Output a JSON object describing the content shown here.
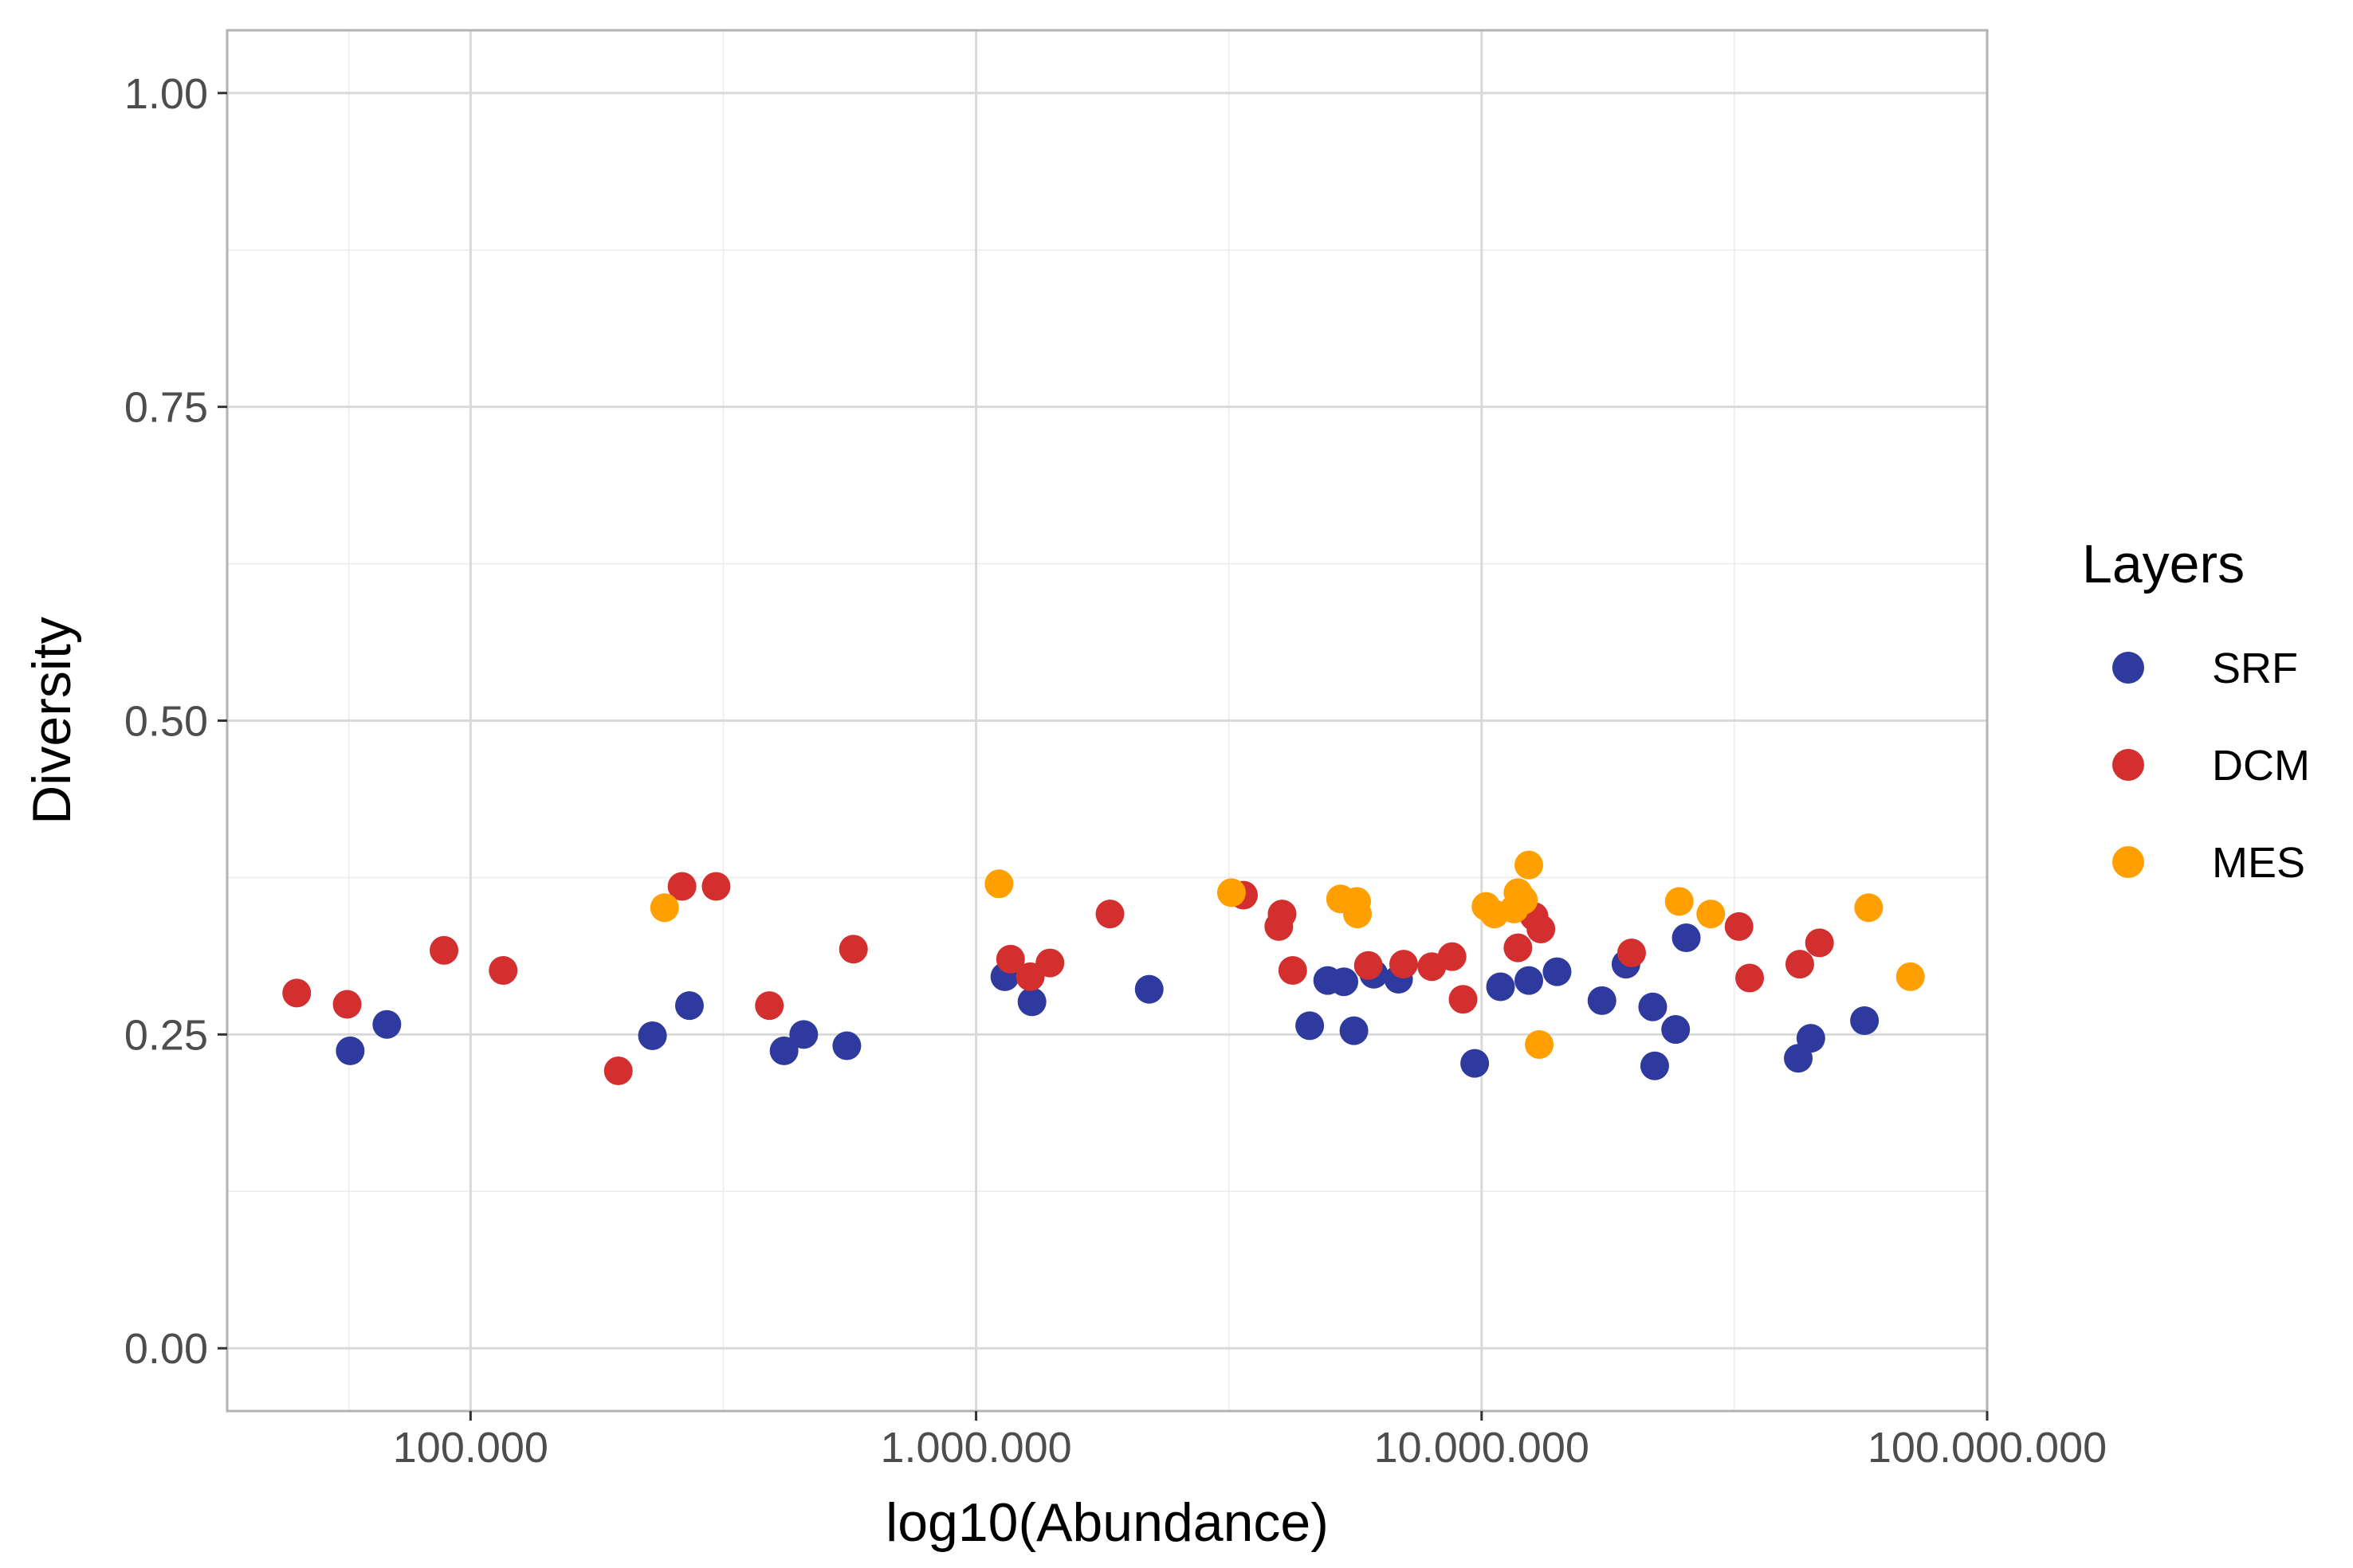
{
  "chart_data": {
    "type": "scatter",
    "title": "",
    "xlabel": "log10(Abundance)",
    "ylabel": "Diversity",
    "x_scale": "log10",
    "xlim": [
      33000,
      100000000
    ],
    "ylim": [
      -0.05,
      1.05
    ],
    "x_ticks": [
      100000,
      1000000,
      10000000,
      100000000
    ],
    "x_tick_labels": [
      "100.000",
      "1.000.000",
      "10.000.000",
      "100.000.000"
    ],
    "y_ticks": [
      0,
      0.25,
      0.5,
      0.75,
      1
    ],
    "y_tick_labels": [
      "0.00",
      "0.25",
      "0.50",
      "0.75",
      "1.00"
    ],
    "grid": true,
    "legend": {
      "title": "Layers",
      "position": "right"
    },
    "series": [
      {
        "name": "SRF",
        "color": "#2e3a9e",
        "points": [
          [
            57800,
            0.237
          ],
          [
            68300,
            0.258
          ],
          [
            229000,
            0.249
          ],
          [
            271000,
            0.273
          ],
          [
            417000,
            0.237
          ],
          [
            456000,
            0.25
          ],
          [
            555000,
            0.241
          ],
          [
            1140000,
            0.296
          ],
          [
            1290000,
            0.276
          ],
          [
            2200000,
            0.286
          ],
          [
            4570000,
            0.257
          ],
          [
            4960000,
            0.293
          ],
          [
            5340000,
            0.292
          ],
          [
            5590000,
            0.253
          ],
          [
            6120000,
            0.298
          ],
          [
            6850000,
            0.294
          ],
          [
            9690000,
            0.227
          ],
          [
            10900000,
            0.288
          ],
          [
            12400000,
            0.293
          ],
          [
            14100000,
            0.3
          ],
          [
            17300000,
            0.277
          ],
          [
            19300000,
            0.306
          ],
          [
            21800000,
            0.272
          ],
          [
            22000000,
            0.225
          ],
          [
            24200000,
            0.254
          ],
          [
            25400000,
            0.327
          ],
          [
            42300000,
            0.231
          ],
          [
            44800000,
            0.247
          ],
          [
            57200000,
            0.261
          ]
        ]
      },
      {
        "name": "DCM",
        "color": "#d32f2f",
        "points": [
          [
            45300,
            0.283
          ],
          [
            57000,
            0.274
          ],
          [
            88600,
            0.317
          ],
          [
            116000,
            0.301
          ],
          [
            196000,
            0.221
          ],
          [
            262000,
            0.368
          ],
          [
            306000,
            0.368
          ],
          [
            390000,
            0.273
          ],
          [
            572000,
            0.318
          ],
          [
            1170000,
            0.31
          ],
          [
            1280000,
            0.296
          ],
          [
            1400000,
            0.307
          ],
          [
            1840000,
            0.346
          ],
          [
            3380000,
            0.361
          ],
          [
            3970000,
            0.336
          ],
          [
            4030000,
            0.346
          ],
          [
            4230000,
            0.301
          ],
          [
            5970000,
            0.305
          ],
          [
            7010000,
            0.306
          ],
          [
            7970000,
            0.304
          ],
          [
            8740000,
            0.312
          ],
          [
            9190000,
            0.278
          ],
          [
            11800000,
            0.319
          ],
          [
            12700000,
            0.344
          ],
          [
            13100000,
            0.334
          ],
          [
            19800000,
            0.315
          ],
          [
            32300000,
            0.336
          ],
          [
            33900000,
            0.295
          ],
          [
            42600000,
            0.306
          ],
          [
            46600000,
            0.323
          ]
        ]
      },
      {
        "name": "MES",
        "color": "#ffa000",
        "points": [
          [
            242000,
            0.351
          ],
          [
            1110000,
            0.37
          ],
          [
            3200000,
            0.363
          ],
          [
            5260000,
            0.358
          ],
          [
            5660000,
            0.356
          ],
          [
            5680000,
            0.346
          ],
          [
            10200000,
            0.352
          ],
          [
            10600000,
            0.346
          ],
          [
            11600000,
            0.35
          ],
          [
            11800000,
            0.363
          ],
          [
            12100000,
            0.357
          ],
          [
            12400000,
            0.385
          ],
          [
            13000000,
            0.242
          ],
          [
            24600000,
            0.356
          ],
          [
            28400000,
            0.346
          ],
          [
            58300000,
            0.351
          ],
          [
            70500000,
            0.296
          ]
        ]
      }
    ]
  }
}
